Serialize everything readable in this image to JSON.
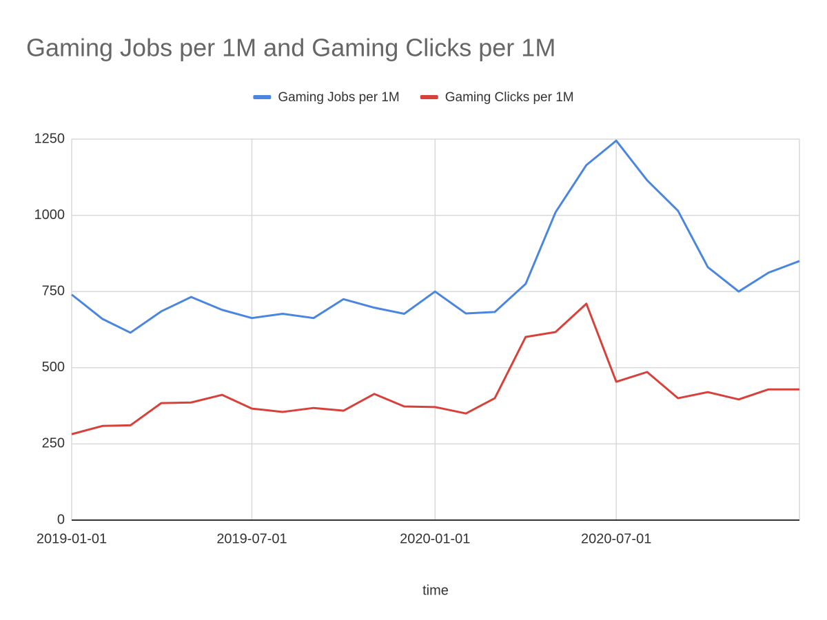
{
  "chart_data": {
    "type": "line",
    "title": "Gaming Jobs per 1M and Gaming Clicks per 1M",
    "x_label": "time",
    "x": [
      "2019-01-01",
      "2019-02-01",
      "2019-03-01",
      "2019-04-01",
      "2019-05-01",
      "2019-06-01",
      "2019-07-01",
      "2019-08-01",
      "2019-09-01",
      "2019-10-01",
      "2019-11-01",
      "2019-12-01",
      "2020-01-01",
      "2020-02-01",
      "2020-03-01",
      "2020-04-01",
      "2020-05-01",
      "2020-06-01",
      "2020-07-01",
      "2020-08-01",
      "2020-09-01",
      "2020-10-01",
      "2020-11-01",
      "2020-12-01",
      "2021-01-01"
    ],
    "series": [
      {
        "name": "Gaming Jobs per 1M",
        "color": "#4a86e0",
        "values": [
          740,
          660,
          615,
          685,
          732,
          690,
          663,
          677,
          663,
          725,
          697,
          677,
          750,
          678,
          683,
          775,
          1010,
          1165,
          1245,
          1115,
          1015,
          830,
          750,
          812,
          850
        ]
      },
      {
        "name": "Gaming Clicks per 1M",
        "color": "#d8403a",
        "values": [
          282,
          309,
          311,
          384,
          386,
          411,
          366,
          355,
          368,
          359,
          414,
          373,
          371,
          350,
          400,
          601,
          617,
          710,
          454,
          486,
          400,
          420,
          396,
          429,
          429
        ]
      }
    ],
    "xlim": [
      "2019-01-01",
      "2021-01-01"
    ],
    "xticks": [
      "2019-01-01",
      "2019-07-01",
      "2020-01-01",
      "2020-07-01"
    ],
    "ylim": [
      0,
      1250
    ],
    "yticks": [
      0,
      250,
      500,
      750,
      1000,
      1250
    ],
    "grid": true,
    "legend": "top"
  }
}
